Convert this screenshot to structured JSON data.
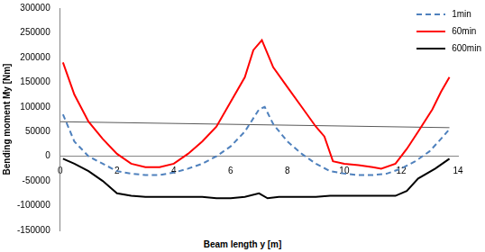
{
  "chart_data": {
    "type": "line",
    "x_label": "Beam length y [m]",
    "y_label": "Bending moment My [Nm]",
    "xlim": [
      0,
      14
    ],
    "xticks": [
      0,
      2,
      4,
      6,
      8,
      10,
      12,
      14
    ],
    "ylim": [
      -150000,
      300000
    ],
    "yticks": [
      -150000,
      -100000,
      -50000,
      0,
      50000,
      100000,
      150000,
      200000,
      250000,
      300000
    ],
    "grid": false,
    "legend": "upper right",
    "marker": "none",
    "series": [
      {
        "name": "1min",
        "color": "#4f81bd",
        "line_style": "dashed",
        "x": [
          0.1,
          0.5,
          1,
          1.5,
          2,
          2.5,
          3,
          3.5,
          4,
          4.5,
          5,
          5.5,
          6,
          6.5,
          7,
          7.2,
          7.5,
          8,
          8.5,
          9,
          9.5,
          10,
          10.5,
          11,
          11.5,
          12,
          12.5,
          13,
          13.4,
          13.7
        ],
        "values": [
          85000,
          30000,
          0,
          -15000,
          -30000,
          -35000,
          -38000,
          -38000,
          -33000,
          -25000,
          -15000,
          0,
          20000,
          50000,
          95000,
          100000,
          65000,
          30000,
          5000,
          -15000,
          -30000,
          -35000,
          -38000,
          -38000,
          -35000,
          -25000,
          -10000,
          10000,
          35000,
          55000
        ]
      },
      {
        "name": "60min",
        "color": "#ff0000",
        "line_style": "solid",
        "x": [
          0.1,
          0.5,
          1,
          1.5,
          2,
          2.5,
          3,
          3.5,
          4,
          4.5,
          5,
          5.5,
          6,
          6.5,
          6.8,
          7.1,
          7.5,
          8,
          8.5,
          9,
          9.3,
          9.6,
          10,
          10.5,
          11,
          11.3,
          11.8,
          12.2,
          12.6,
          13.1,
          13.4,
          13.7
        ],
        "values": [
          190000,
          125000,
          70000,
          35000,
          5000,
          -15000,
          -22000,
          -22000,
          -15000,
          5000,
          30000,
          60000,
          110000,
          160000,
          215000,
          235000,
          180000,
          140000,
          100000,
          60000,
          40000,
          -10000,
          -15000,
          -18000,
          -22000,
          -25000,
          -15000,
          15000,
          50000,
          95000,
          130000,
          160000
        ]
      },
      {
        "name": "600min",
        "color": "#000000",
        "line_style": "solid",
        "x": [
          0.1,
          0.5,
          1,
          1.5,
          2,
          2.5,
          3,
          4,
          5,
          5.5,
          6,
          6.5,
          7,
          7.3,
          7.7,
          8.5,
          9,
          9.5,
          10,
          11,
          11.8,
          12.2,
          12.6,
          13.2,
          13.7
        ],
        "values": [
          -5000,
          -15000,
          -30000,
          -50000,
          -75000,
          -80000,
          -82000,
          -82000,
          -82000,
          -85000,
          -85000,
          -82000,
          -75000,
          -85000,
          -82000,
          -82000,
          -82000,
          -80000,
          -80000,
          -80000,
          -80000,
          -70000,
          -45000,
          -25000,
          -5000
        ]
      },
      {
        "color": "#595959",
        "line_style": "solid",
        "x": [
          0,
          13.7
        ],
        "values": [
          70000,
          58000
        ]
      }
    ]
  }
}
